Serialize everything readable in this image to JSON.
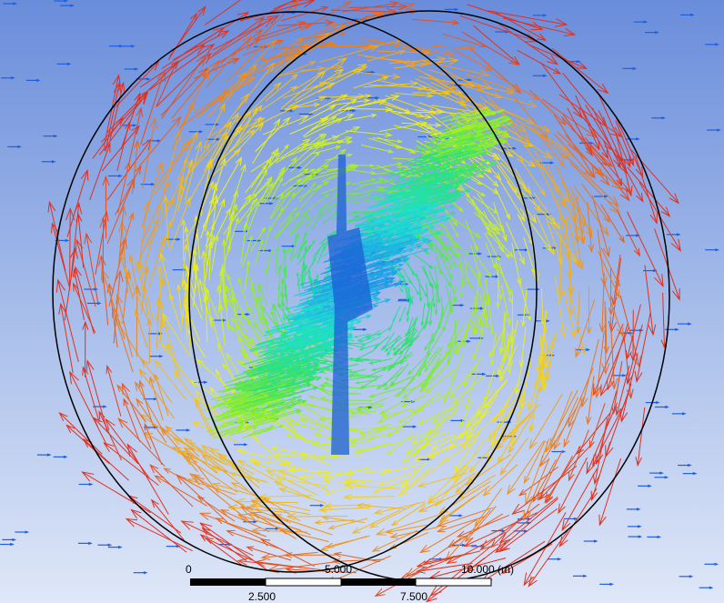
{
  "colors": {
    "background_top": "#6a8ddb",
    "background_bottom": "#dfe7f8",
    "freestream_arrow": "#1e5fe0",
    "circle_outline": "#000000",
    "blade_core": "#1b5fd6",
    "colormap": [
      "#1b4fd0",
      "#1fa0e8",
      "#1ee0d0",
      "#2fe070",
      "#a8f020",
      "#f0f020",
      "#f0a020",
      "#e03020"
    ]
  },
  "scale_bar": {
    "top_labels": [
      "0",
      "5.000",
      "10.000 (m)"
    ],
    "bottom_labels": [
      "2.500",
      "7.500"
    ]
  },
  "icons": {
    "vector_glyph": "arrow-icon"
  }
}
